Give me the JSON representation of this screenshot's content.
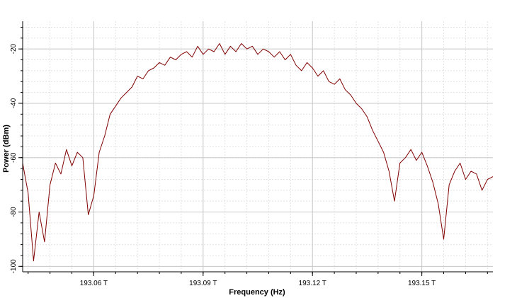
{
  "chart_data": {
    "type": "line",
    "title": "",
    "xlabel": "Frequency (Hz)",
    "ylabel": "Power (dBm)",
    "xlim": [
      193.0405,
      193.1695
    ],
    "ylim": [
      -102,
      -9.8
    ],
    "x_unit": "THz",
    "x_ticks": [
      193.06,
      193.09,
      193.12,
      193.15
    ],
    "x_tick_labels": [
      "193.06 T",
      "193.09 T",
      "193.12 T",
      "193.15 T"
    ],
    "y_ticks": [
      -20,
      -40,
      -60,
      -80,
      -100
    ],
    "y_tick_labels": [
      "-20",
      "-40",
      "-60",
      "-80",
      "-100"
    ],
    "grid": true,
    "legend": "none",
    "series": [
      {
        "color": "#7f0000",
        "x": [
          193.0405,
          193.042,
          193.0435,
          193.045,
          193.0465,
          193.048,
          193.0495,
          193.051,
          193.0525,
          193.054,
          193.0555,
          193.057,
          193.0585,
          193.06,
          193.0615,
          193.063,
          193.0645,
          193.066,
          193.0675,
          193.069,
          193.0705,
          193.072,
          193.0735,
          193.075,
          193.0765,
          193.078,
          193.0795,
          193.081,
          193.0825,
          193.084,
          193.0855,
          193.087,
          193.0885,
          193.09,
          193.0915,
          193.093,
          193.0945,
          193.096,
          193.0975,
          193.099,
          193.1005,
          193.102,
          193.1035,
          193.105,
          193.1065,
          193.108,
          193.1095,
          193.111,
          193.1125,
          193.114,
          193.1155,
          193.117,
          193.1185,
          193.12,
          193.1215,
          193.123,
          193.1245,
          193.126,
          193.1275,
          193.129,
          193.1305,
          193.132,
          193.1335,
          193.135,
          193.1365,
          193.138,
          193.1395,
          193.141,
          193.1425,
          193.144,
          193.1455,
          193.147,
          193.1485,
          193.15,
          193.1515,
          193.153,
          193.1545,
          193.156,
          193.1575,
          193.159,
          193.1605,
          193.162,
          193.1635,
          193.165,
          193.1665,
          193.168,
          193.1695
        ],
        "y": [
          -62,
          -73,
          -98,
          -80,
          -91,
          -70,
          -62,
          -66,
          -57,
          -63,
          -58,
          -60,
          -81,
          -74,
          -58,
          -52,
          -44,
          -41,
          -38,
          -36,
          -34,
          -30,
          -31,
          -28,
          -27,
          -25,
          -26,
          -23,
          -24,
          -22,
          -21,
          -23,
          -19,
          -22,
          -20,
          -21,
          -18,
          -22,
          -19,
          -21,
          -18,
          -20,
          -19,
          -22,
          -20,
          -21,
          -23,
          -21,
          -24,
          -22,
          -26,
          -28,
          -25,
          -27,
          -30,
          -28,
          -32,
          -33,
          -31,
          -35,
          -37,
          -40,
          -42,
          -45,
          -50,
          -54,
          -58,
          -65,
          -76,
          -62,
          -60,
          -57,
          -61,
          -58,
          -63,
          -69,
          -77,
          -90,
          -70,
          -65,
          -62,
          -68,
          -65,
          -66,
          -72,
          -68,
          -67
        ]
      }
    ]
  }
}
